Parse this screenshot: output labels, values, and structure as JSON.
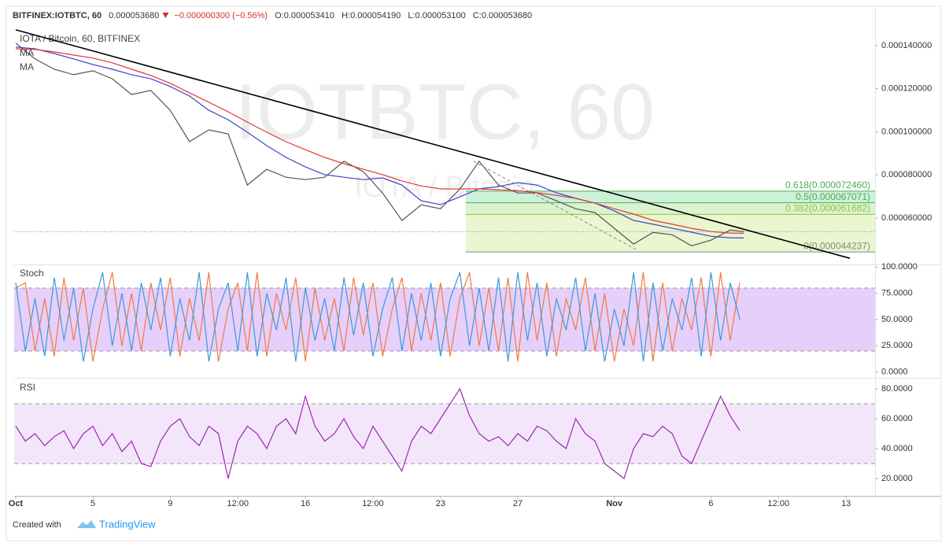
{
  "header": {
    "symbol": "BITFINEX:IOTBTC, 60",
    "last": "0.000053680",
    "change": "−0.000000300 (−0.56%)",
    "open": "O:0.000053410",
    "high": "H:0.000054190",
    "low": "L:0.000053100",
    "close": "C:0.000053680"
  },
  "footer": {
    "created_with": "Created with",
    "brand": "TradingView"
  },
  "chart_data": [
    {
      "type": "line",
      "title": "IOTA / Bitcoin, 60, BITFINEX",
      "watermark": "IOTBTC, 60",
      "watermark_subtitle": "IOTA / Bitcoin",
      "xlim": [
        -0.08,
        44.5
      ],
      "ylim": [
        3.88e-05,
        0.0001575
      ],
      "yticks": [
        {
          "value": 6e-05,
          "label": "0.000060000"
        },
        {
          "value": 8e-05,
          "label": "0.000080000"
        },
        {
          "value": 0.0001,
          "label": "0.000100000"
        },
        {
          "value": 0.00012,
          "label": "0.000120000"
        },
        {
          "value": 0.00014,
          "label": "0.000140000"
        }
      ],
      "x": [
        0,
        1,
        2,
        3,
        4,
        5,
        6,
        7,
        8,
        9,
        10,
        11,
        12,
        13,
        14,
        15,
        16,
        17,
        18,
        19,
        20,
        21,
        22,
        23,
        24,
        25,
        26,
        27,
        28,
        29,
        30,
        31,
        32,
        33,
        34,
        35,
        36,
        37,
        37.7
      ],
      "color": "#555555",
      "values": [
        0.0001411,
        0.0001338,
        0.000129,
        0.0001265,
        0.0001283,
        0.0001246,
        0.0001173,
        0.0001192,
        0.00011,
        9.54e-05,
        0.0001009,
        9.9e-05,
        7.53e-05,
        8.26e-05,
        7.89e-05,
        7.78e-05,
        7.89e-05,
        8.63e-05,
        8.15e-05,
        7.16e-05,
        5.88e-05,
        6.61e-05,
        6.43e-05,
        7.34e-05,
        8.63e-05,
        7.53e-05,
        7.16e-05,
        7.16e-05,
        6.8e-05,
        6.43e-05,
        6.25e-05,
        5.52e-05,
        4.79e-05,
        5.33e-05,
        5.22e-05,
        4.71e-05,
        4.97e-05,
        5.44e-05,
        5.368e-05
      ],
      "series": [
        {
          "name": "MA",
          "color": "#3d44c8",
          "values": [
            0.0001393,
            0.0001385,
            0.0001363,
            0.0001338,
            0.0001312,
            0.000129,
            0.0001265,
            0.0001246,
            0.000121,
            0.0001166,
            0.00011,
            0.0001056,
            9.98e-05,
            9.36e-05,
            8.81e-05,
            8.37e-05,
            8.01e-05,
            7.89e-05,
            7.78e-05,
            7.86e-05,
            7.53e-05,
            6.8e-05,
            6.62e-05,
            6.98e-05,
            7.35e-05,
            7.46e-05,
            7.64e-05,
            7.53e-05,
            7.17e-05,
            6.91e-05,
            6.69e-05,
            6.33e-05,
            5.89e-05,
            5.71e-05,
            5.52e-05,
            5.34e-05,
            5.15e-05,
            5.08e-05,
            5.07e-05
          ]
        },
        {
          "name": "MA",
          "color": "#e03a3a",
          "values": [
            0.0001385,
            0.0001382,
            0.0001371,
            0.0001356,
            0.0001342,
            0.000132,
            0.000129,
            0.0001261,
            0.0001225,
            0.0001181,
            0.0001137,
            0.0001093,
            0.0001045,
            9.98e-05,
            9.54e-05,
            9.17e-05,
            8.81e-05,
            8.52e-05,
            8.26e-05,
            8.01e-05,
            7.72e-05,
            7.49e-05,
            7.35e-05,
            7.35e-05,
            7.35e-05,
            7.31e-05,
            7.27e-05,
            7.17e-05,
            7.05e-05,
            6.91e-05,
            6.69e-05,
            6.43e-05,
            6.18e-05,
            5.89e-05,
            5.71e-05,
            5.52e-05,
            5.37e-05,
            5.3e-05,
            5.29e-05
          ]
        }
      ],
      "trendline": {
        "x": [
          0,
          43.2
        ],
        "values": [
          0.0001473,
          4.13e-05
        ],
        "color": "#000000"
      },
      "dashed_line": {
        "x": [
          23.7,
          32.2
        ],
        "values": [
          8.63e-05,
          4.5e-05
        ],
        "color": "#888888"
      },
      "fib": {
        "x": 23.3,
        "levels": [
          {
            "value": 4.4237e-05,
            "label": "0(0.000044237)",
            "color": "#888888",
            "fill": "#eaf6cf"
          },
          {
            "value": 6.1682e-05,
            "label": "0.382(0.000061682)",
            "color": "#8dc33c",
            "fill": "#dbf3cf"
          },
          {
            "value": 6.7071e-05,
            "label": "0.5(0.000067071)",
            "color": "#4caf50",
            "fill": "#cdf0d9"
          },
          {
            "value": 7.246e-05,
            "label": "0.618(0.000072460)",
            "color": "#4caf50",
            "fill": null
          }
        ]
      }
    },
    {
      "type": "line",
      "title": "Stoch",
      "xlim": [
        -0.08,
        44.5
      ],
      "ylim": [
        -4,
        101
      ],
      "yticks": [
        {
          "value": 0,
          "label": "0.0000"
        },
        {
          "value": 25,
          "label": "25.0000"
        },
        {
          "value": 50,
          "label": "50.0000"
        },
        {
          "value": 75,
          "label": "75.0000"
        },
        {
          "value": 100,
          "label": "100.0000"
        }
      ],
      "bands": {
        "range": [
          20,
          80
        ],
        "color": "#e6cffa"
      },
      "x": [
        0,
        0.5,
        1,
        1.5,
        2,
        2.5,
        3,
        3.5,
        4,
        4.5,
        5,
        5.5,
        6,
        6.5,
        7,
        7.5,
        8,
        8.5,
        9,
        9.5,
        10,
        10.5,
        11,
        11.5,
        12,
        12.5,
        13,
        13.5,
        14,
        14.5,
        15,
        15.5,
        16,
        16.5,
        17,
        17.5,
        18,
        18.5,
        19,
        19.5,
        20,
        20.5,
        21,
        21.5,
        22,
        22.5,
        23,
        23.5,
        24,
        24.5,
        25,
        25.5,
        26,
        26.5,
        27,
        27.5,
        28,
        28.5,
        29,
        29.5,
        30,
        30.5,
        31,
        31.5,
        32,
        32.5,
        33,
        33.5,
        34,
        34.5,
        35,
        35.5,
        36,
        36.5,
        37,
        37.5
      ],
      "series": [
        {
          "color": "#f07b3f",
          "values": [
            80,
            85,
            20,
            70,
            15,
            90,
            30,
            80,
            10,
            60,
            95,
            25,
            75,
            20,
            85,
            40,
            90,
            15,
            70,
            30,
            95,
            10,
            60,
            85,
            20,
            95,
            15,
            75,
            40,
            90,
            10,
            80,
            30,
            70,
            20,
            90,
            35,
            85,
            15,
            60,
            90,
            20,
            75,
            30,
            85,
            15,
            70,
            95,
            25,
            80,
            20,
            90,
            10,
            95,
            30,
            85,
            15,
            70,
            40,
            90,
            20,
            75,
            10,
            60,
            25,
            95,
            10,
            85,
            20,
            70,
            40,
            90,
            15,
            95,
            30,
            85
          ]
        },
        {
          "color": "#3a9ad9",
          "values": [
            85,
            20,
            70,
            15,
            90,
            30,
            80,
            10,
            60,
            95,
            25,
            75,
            20,
            85,
            40,
            90,
            15,
            70,
            30,
            95,
            10,
            60,
            85,
            20,
            95,
            15,
            75,
            40,
            90,
            10,
            80,
            30,
            70,
            20,
            90,
            35,
            85,
            15,
            60,
            90,
            20,
            75,
            30,
            85,
            15,
            70,
            95,
            25,
            80,
            20,
            90,
            10,
            95,
            30,
            85,
            15,
            70,
            40,
            90,
            20,
            75,
            10,
            60,
            25,
            95,
            10,
            85,
            20,
            70,
            40,
            90,
            15,
            95,
            30,
            85,
            50
          ]
        }
      ]
    },
    {
      "type": "line",
      "title": "RSI",
      "xlim": [
        -0.08,
        44.5
      ],
      "ylim": [
        9.5,
        85.8
      ],
      "yticks": [
        {
          "value": 20,
          "label": "20.0000"
        },
        {
          "value": 40,
          "label": "40.0000"
        },
        {
          "value": 60,
          "label": "60.0000"
        },
        {
          "value": 80,
          "label": "80.0000"
        }
      ],
      "xticks": [
        {
          "value": 0,
          "label": "Oct"
        },
        {
          "value": 4,
          "label": "5"
        },
        {
          "value": 8,
          "label": "9"
        },
        {
          "value": 11.5,
          "label": "12:00"
        },
        {
          "value": 15,
          "label": "16"
        },
        {
          "value": 18.5,
          "label": "12:00"
        },
        {
          "value": 22,
          "label": "23"
        },
        {
          "value": 26,
          "label": "27"
        },
        {
          "value": 31,
          "label": "Nov"
        },
        {
          "value": 36,
          "label": "6"
        },
        {
          "value": 39.5,
          "label": "12:00"
        },
        {
          "value": 43,
          "label": "13"
        }
      ],
      "bands": {
        "range": [
          30,
          70
        ],
        "color": "#f3e6fb"
      },
      "x": [
        0,
        0.5,
        1,
        1.5,
        2,
        2.5,
        3,
        3.5,
        4,
        4.5,
        5,
        5.5,
        6,
        6.5,
        7,
        7.5,
        8,
        8.5,
        9,
        9.5,
        10,
        10.5,
        11,
        11.5,
        12,
        12.5,
        13,
        13.5,
        14,
        14.5,
        15,
        15.5,
        16,
        16.5,
        17,
        17.5,
        18,
        18.5,
        19,
        19.5,
        20,
        20.5,
        21,
        21.5,
        22,
        22.5,
        23,
        23.5,
        24,
        24.5,
        25,
        25.5,
        26,
        26.5,
        27,
        27.5,
        28,
        28.5,
        29,
        29.5,
        30,
        30.5,
        31,
        31.5,
        32,
        32.5,
        33,
        33.5,
        34,
        34.5,
        35,
        35.5,
        36,
        36.5,
        37,
        37.5
      ],
      "series": [
        {
          "color": "#9c27b0",
          "values": [
            55,
            45,
            50,
            42,
            48,
            52,
            40,
            50,
            55,
            42,
            50,
            38,
            45,
            30,
            28,
            45,
            55,
            60,
            48,
            42,
            55,
            50,
            20,
            45,
            55,
            50,
            40,
            55,
            60,
            50,
            75,
            55,
            45,
            50,
            60,
            48,
            40,
            55,
            45,
            35,
            25,
            45,
            55,
            50,
            60,
            70,
            80,
            62,
            50,
            45,
            48,
            42,
            50,
            45,
            55,
            52,
            45,
            40,
            60,
            50,
            45,
            30,
            25,
            20,
            40,
            50,
            48,
            55,
            50,
            35,
            30,
            45,
            60,
            75,
            62,
            52
          ]
        }
      ]
    }
  ]
}
